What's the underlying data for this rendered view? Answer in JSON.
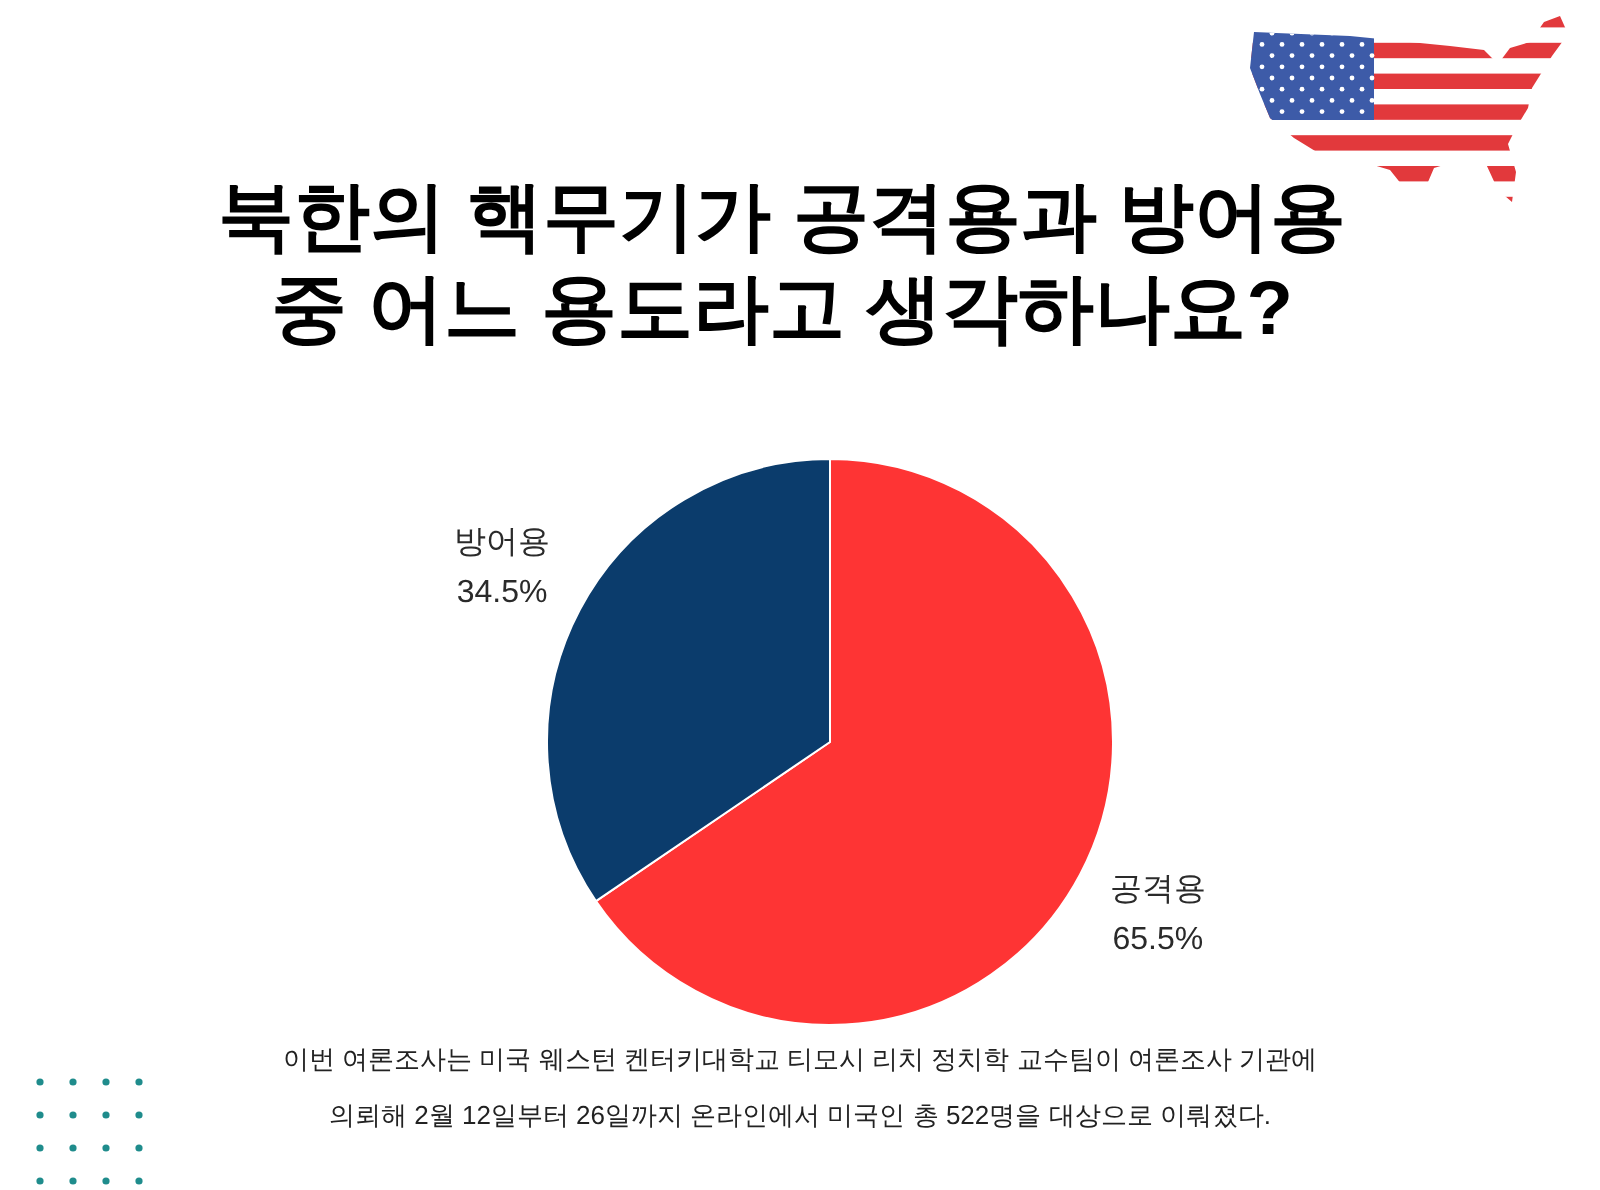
{
  "chart_data": {
    "type": "pie",
    "title": "북한의 핵무기가 공격용과 방어용 중 어느 용도라고 생각하나요?",
    "categories": [
      "공격용",
      "방어용"
    ],
    "values": [
      65.5,
      34.5
    ],
    "colors": [
      "#fe3434",
      "#0b3c6c"
    ],
    "value_labels": [
      "65.5%",
      "34.5%"
    ],
    "legend": false,
    "annotations": [
      "이번 여론조사는 미국 웨스턴 켄터키대학교 티모시 리치 정치학 교수팀이 여론조사 기관에 의뢰해 2월 12일부터 26일까지 온라인에서 미국인 총 522명을 대상으로 이뤄졌다."
    ]
  }
}
